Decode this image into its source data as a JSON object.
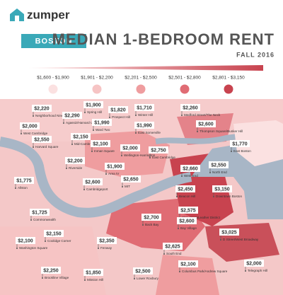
{
  "brand": "zumper",
  "city": "BOSTON",
  "title": "MEDIAN 1-BEDROOM RENT",
  "subtitle": "FALL 2016",
  "legend": [
    {
      "label": "$1,600 - $1,900",
      "color": "#fbe1e1"
    },
    {
      "label": "$1,901 - $2,200",
      "color": "#f6c4c4"
    },
    {
      "label": "$2,201 - $2,500",
      "color": "#ef9d9f"
    },
    {
      "label": "$2,501 - $2,800",
      "color": "#e06c74"
    },
    {
      "label": "$2,801 - $3,150",
      "color": "#c8434f"
    }
  ],
  "neighborhoods": [
    {
      "name": "Neighborhood Nine",
      "price": "$2,220"
    },
    {
      "name": "Spring Hill",
      "price": "$1,900"
    },
    {
      "name": "Prospect Hill",
      "price": "$1,820"
    },
    {
      "name": "Winter Hill",
      "price": "$1,710"
    },
    {
      "name": "Medford Street/The Neck",
      "price": "$2,260"
    },
    {
      "name": "Agassiz/Harvard University",
      "price": "$2,290"
    },
    {
      "name": "Ward Two",
      "price": "$1,990"
    },
    {
      "name": "East Somerville",
      "price": "$1,990"
    },
    {
      "name": "West Cambridge",
      "price": "$2,000"
    },
    {
      "name": "Thompson Square/Bunker Hill",
      "price": "$2,600"
    },
    {
      "name": "East Boston",
      "price": "$1,770"
    },
    {
      "name": "Harvard Square",
      "price": "$2,550"
    },
    {
      "name": "Mid-Cambridge",
      "price": "$2,150"
    },
    {
      "name": "Inman Square",
      "price": "$2,100"
    },
    {
      "name": "Wellington-Harrington",
      "price": "$2,000"
    },
    {
      "name": "East Cambridge",
      "price": "$2,750"
    },
    {
      "name": "Riverside",
      "price": "$2,200"
    },
    {
      "name": "Area IV",
      "price": "$1,900"
    },
    {
      "name": "MIT",
      "price": "$2,650"
    },
    {
      "name": "Cambridgeport",
      "price": "$2,600"
    },
    {
      "name": "West End",
      "price": "$2,660"
    },
    {
      "name": "North End",
      "price": "$2,550"
    },
    {
      "name": "Allston",
      "price": "$1,775"
    },
    {
      "name": "Beacon Hill",
      "price": "$2,450"
    },
    {
      "name": "Downtown Boston",
      "price": "$3,150"
    },
    {
      "name": "Commonwealth",
      "price": "$1,725"
    },
    {
      "name": "Back Bay",
      "price": "$2,700"
    },
    {
      "name": "Chinatown/Leather District",
      "price": "$2,575"
    },
    {
      "name": "Bay Village",
      "price": "$2,600"
    },
    {
      "name": "Coolidge Corner",
      "price": "$2,150"
    },
    {
      "name": "Washington Square",
      "price": "$2,100"
    },
    {
      "name": "Fenway",
      "price": "$2,350"
    },
    {
      "name": "South End",
      "price": "$2,625"
    },
    {
      "name": "D Street/West Broadway",
      "price": "$3,025"
    },
    {
      "name": "Brookline Village",
      "price": "$2,250"
    },
    {
      "name": "Mission Hill",
      "price": "$1,850"
    },
    {
      "name": "Lower Roxbury",
      "price": "$2,500"
    },
    {
      "name": "Columbus Park/Andrew Square",
      "price": "$2,100"
    },
    {
      "name": "Telegraph Hill",
      "price": "$2,000"
    }
  ]
}
